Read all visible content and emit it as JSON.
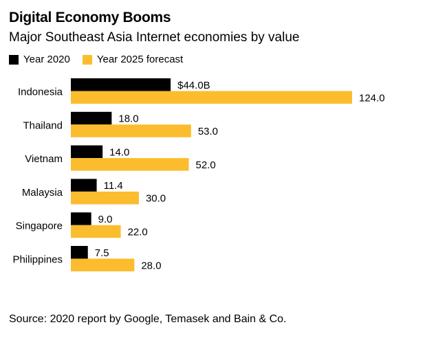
{
  "title": "Digital Economy Booms",
  "subtitle": "Major Southeast Asia Internet economies by value",
  "source": "Source: 2020 report by Google, Temasek and Bain & Co.",
  "colors": {
    "year2020": "#000000",
    "year2025": "#fbbd2d",
    "text": "#000000"
  },
  "chart_data": {
    "type": "bar",
    "orientation": "horizontal",
    "categories": [
      "Indonesia",
      "Thailand",
      "Vietnam",
      "Malaysia",
      "Singapore",
      "Philippines"
    ],
    "series": [
      {
        "name": "Year 2020",
        "values": [
          44.0,
          18.0,
          14.0,
          11.4,
          9.0,
          7.5
        ],
        "labels": [
          "$44.0B",
          "18.0",
          "14.0",
          "11.4",
          "9.0",
          "7.5"
        ]
      },
      {
        "name": "Year 2025 forecast",
        "values": [
          124.0,
          53.0,
          52.0,
          30.0,
          22.0,
          28.0
        ],
        "labels": [
          "124.0",
          "53.0",
          "52.0",
          "30.0",
          "22.0",
          "28.0"
        ]
      }
    ],
    "xlim": [
      0,
      124.0
    ],
    "legend": "top-left",
    "grid": false
  }
}
